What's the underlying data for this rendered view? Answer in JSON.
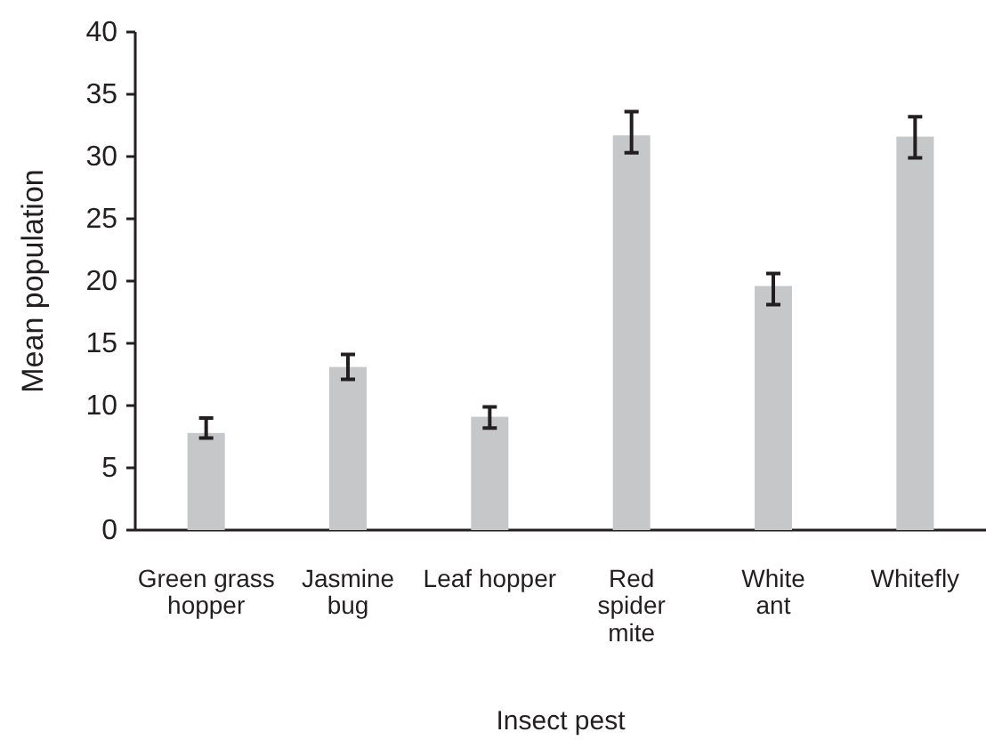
{
  "chart_data": {
    "type": "bar",
    "xlabel": "Insect pest",
    "ylabel": "Mean population",
    "categories": [
      "Green grass\nhopper",
      "Jasmine\nbug",
      "Leaf hopper",
      "Red\nspider\nmite",
      "White\nant",
      "Whitefly"
    ],
    "values": [
      7.8,
      13.1,
      9.1,
      31.7,
      19.6,
      31.6
    ],
    "errors": [
      [
        7.4,
        9.0
      ],
      [
        12.1,
        14.1
      ],
      [
        8.2,
        9.9
      ],
      [
        30.3,
        33.6
      ],
      [
        18.1,
        20.6
      ],
      [
        29.9,
        33.2
      ]
    ],
    "color": "#c6c7c9",
    "ylim": [
      0,
      40
    ],
    "yticks": [
      0,
      5,
      10,
      15,
      20,
      25,
      30,
      35,
      40
    ],
    "grid": false
  }
}
